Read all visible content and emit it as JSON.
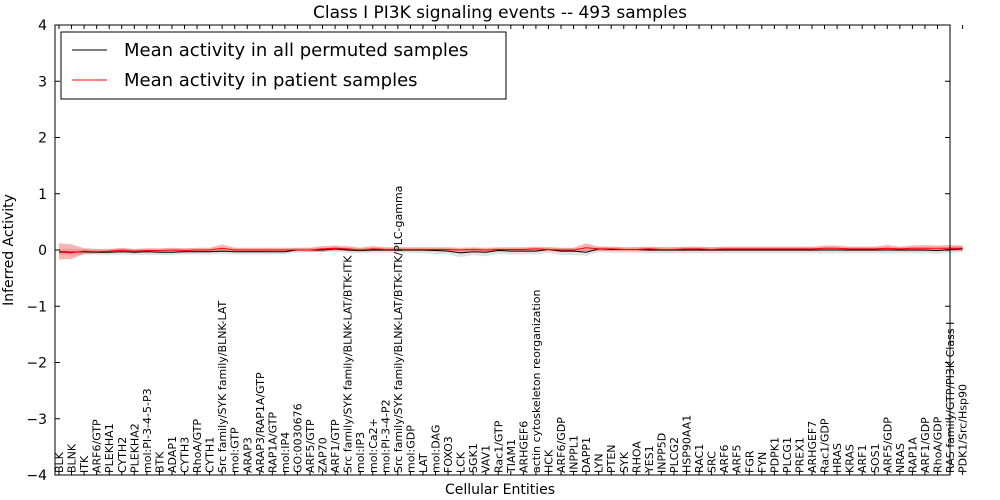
{
  "chart_data": {
    "type": "line",
    "title": "Class I PI3K signaling events -- 493 samples",
    "xlabel": "Cellular Entities",
    "ylabel": "Inferred Activity",
    "ylim": [
      -4,
      4
    ],
    "yticks": [
      -4,
      -3,
      -2,
      -1,
      0,
      1,
      2,
      3,
      4
    ],
    "ytick_labels": [
      "−4",
      "−3",
      "−2",
      "−1",
      "0",
      "1",
      "2",
      "3",
      "4"
    ],
    "grid": false,
    "legend": {
      "position": "top-left",
      "entries": [
        {
          "label": "Mean activity in all permuted samples",
          "color": "#000000"
        },
        {
          "label": "Mean activity in patient samples",
          "color": "#ff0000"
        }
      ]
    },
    "categories": [
      "BLK",
      "BLNK",
      "ITK",
      "ARF6/GTP",
      "PLEKHA1",
      "CYTH2",
      "PLEKHA2",
      "mol:PI-3-4-5-P3",
      "BTK",
      "ADAP1",
      "CYTH3",
      "RhoA/GTP",
      "CYTH1",
      "Src family/SYK family/BLNK-LAT",
      "mol:GTP",
      "ARAP3",
      "ARAP3/RAP1A/GTP",
      "RAP1A/GTP",
      "mol:IP4",
      "GO:0030676",
      "ARF5/GTP",
      "ZAP70",
      "ARF1/GTP",
      "Src family/SYK family/BLNK-LAT/BTK-ITK",
      "mol:IP3",
      "mol:Ca2+",
      "mol:PI-3-4-P2",
      "Src family/SYK family/BLNK-LAT/BTK-ITK/PLC-gamma",
      "mol:GDP",
      "LAT",
      "mol:DAG",
      "FOXO3",
      "LCK",
      "SGK1",
      "VAV1",
      "Rac1/GTP",
      "TIAM1",
      "ARHGEF6",
      "actin cytoskeleton reorganization",
      "HCK",
      "ARF6/GDP",
      "INPPL1",
      "DAPP1",
      "LYN",
      "PTEN",
      "SYK",
      "RHOA",
      "YES1",
      "INPP5D",
      "PLCG2",
      "HSP90AA1",
      "RAC1",
      "SRC",
      "ARF6",
      "ARF5",
      "FGR",
      "FYN",
      "PDPK1",
      "PLCG1",
      "PREX1",
      "ARHGEF7",
      "Rac1/GDP",
      "HRAS",
      "KRAS",
      "ARF1",
      "SOS1",
      "ARF5/GDP",
      "NRAS",
      "RAP1A",
      "ARF1/GDP",
      "RhoA/GDP",
      "RAS family/GTP/PI3K Class I",
      "PDK1/Src/Hsp90"
    ],
    "series": [
      {
        "name": "Mean activity in all permuted samples",
        "values": [
          -0.03,
          -0.04,
          -0.03,
          -0.04,
          -0.04,
          -0.03,
          -0.04,
          -0.03,
          -0.04,
          -0.04,
          -0.03,
          -0.03,
          -0.03,
          -0.02,
          -0.03,
          -0.03,
          -0.03,
          -0.03,
          -0.03,
          0.0,
          0.0,
          0.0,
          0.02,
          0.0,
          -0.01,
          0.0,
          0.0,
          0.0,
          0.0,
          0.0,
          -0.01,
          -0.02,
          -0.05,
          -0.03,
          -0.04,
          -0.01,
          -0.02,
          -0.02,
          -0.02,
          0.01,
          -0.02,
          -0.02,
          -0.04,
          0.02,
          0.01,
          0.01,
          0.01,
          0.0,
          0.0,
          0.0,
          0.0,
          0.0,
          0.0,
          0.0,
          0.0,
          0.0,
          0.0,
          0.0,
          0.0,
          0.0,
          0.0,
          0.0,
          0.0,
          0.0,
          0.0,
          0.0,
          0.0,
          0.0,
          0.0,
          0.0,
          -0.01,
          0.01,
          0.02
        ]
      },
      {
        "name": "Mean activity in patient samples",
        "values": [
          -0.04,
          -0.05,
          -0.02,
          -0.03,
          -0.02,
          0.0,
          -0.02,
          -0.01,
          -0.01,
          0.0,
          -0.01,
          0.0,
          0.0,
          0.03,
          0.0,
          0.0,
          0.0,
          0.0,
          0.0,
          0.0,
          0.0,
          0.02,
          0.03,
          0.02,
          0.0,
          0.02,
          0.01,
          0.01,
          0.01,
          0.01,
          0.01,
          0.01,
          0.0,
          0.01,
          0.0,
          0.01,
          0.01,
          0.01,
          0.02,
          0.01,
          0.0,
          0.0,
          0.04,
          0.02,
          0.02,
          0.01,
          0.01,
          0.02,
          0.01,
          0.01,
          0.02,
          0.02,
          0.01,
          0.02,
          0.02,
          0.02,
          0.02,
          0.02,
          0.02,
          0.02,
          0.02,
          0.03,
          0.03,
          0.02,
          0.02,
          0.02,
          0.03,
          0.02,
          0.03,
          0.03,
          0.03,
          0.03,
          0.03
        ]
      }
    ],
    "bands": [
      {
        "name": "permuted spread",
        "color": "#888888",
        "lower": [
          -0.08,
          -0.1,
          -0.08,
          -0.08,
          -0.09,
          -0.08,
          -0.09,
          -0.09,
          -0.09,
          -0.09,
          -0.08,
          -0.08,
          -0.08,
          -0.07,
          -0.08,
          -0.08,
          -0.08,
          -0.08,
          -0.07,
          -0.05,
          -0.04,
          -0.04,
          -0.03,
          -0.05,
          -0.06,
          -0.05,
          -0.05,
          -0.05,
          -0.05,
          -0.06,
          -0.07,
          -0.08,
          -0.13,
          -0.09,
          -0.11,
          -0.07,
          -0.08,
          -0.08,
          -0.08,
          -0.05,
          -0.09,
          -0.09,
          -0.1,
          -0.04,
          -0.05,
          -0.05,
          -0.05,
          -0.06,
          -0.06,
          -0.06,
          -0.06,
          -0.06,
          -0.06,
          -0.06,
          -0.06,
          -0.06,
          -0.06,
          -0.06,
          -0.06,
          -0.06,
          -0.06,
          -0.06,
          -0.06,
          -0.06,
          -0.06,
          -0.06,
          -0.06,
          -0.06,
          -0.06,
          -0.06,
          -0.07,
          -0.05,
          -0.04
        ],
        "upper": [
          0.02,
          0.02,
          0.02,
          0.01,
          0.01,
          0.02,
          0.01,
          0.02,
          0.01,
          0.01,
          0.02,
          0.02,
          0.02,
          0.03,
          0.02,
          0.02,
          0.02,
          0.02,
          0.02,
          0.04,
          0.04,
          0.04,
          0.06,
          0.04,
          0.04,
          0.04,
          0.04,
          0.04,
          0.04,
          0.04,
          0.04,
          0.03,
          0.02,
          0.03,
          0.02,
          0.04,
          0.03,
          0.03,
          0.03,
          0.05,
          0.04,
          0.03,
          0.02,
          0.06,
          0.05,
          0.05,
          0.05,
          0.05,
          0.05,
          0.05,
          0.05,
          0.05,
          0.05,
          0.05,
          0.05,
          0.05,
          0.05,
          0.05,
          0.05,
          0.05,
          0.05,
          0.05,
          0.05,
          0.05,
          0.05,
          0.05,
          0.05,
          0.05,
          0.05,
          0.05,
          0.04,
          0.06,
          0.07
        ]
      },
      {
        "name": "patient spread",
        "color": "#ff0000",
        "lower": [
          -0.17,
          -0.16,
          -0.07,
          -0.06,
          -0.05,
          -0.03,
          -0.05,
          -0.04,
          -0.04,
          -0.03,
          -0.04,
          -0.03,
          -0.03,
          -0.03,
          -0.02,
          -0.03,
          -0.03,
          -0.02,
          -0.02,
          -0.02,
          -0.03,
          -0.03,
          -0.01,
          -0.02,
          -0.03,
          -0.02,
          -0.02,
          -0.02,
          -0.02,
          -0.02,
          -0.02,
          -0.02,
          -0.03,
          -0.02,
          -0.03,
          -0.02,
          -0.02,
          -0.02,
          -0.02,
          -0.02,
          -0.03,
          -0.03,
          -0.02,
          -0.02,
          -0.02,
          -0.02,
          -0.02,
          -0.02,
          -0.02,
          -0.02,
          -0.02,
          -0.02,
          -0.02,
          -0.02,
          -0.02,
          -0.02,
          -0.02,
          -0.02,
          -0.02,
          -0.02,
          -0.02,
          -0.01,
          -0.01,
          -0.02,
          -0.02,
          -0.02,
          -0.01,
          -0.02,
          -0.02,
          -0.02,
          -0.02,
          -0.02,
          -0.02
        ],
        "upper": [
          0.12,
          0.1,
          0.03,
          0.02,
          0.02,
          0.04,
          0.02,
          0.03,
          0.03,
          0.04,
          0.03,
          0.04,
          0.04,
          0.1,
          0.04,
          0.04,
          0.04,
          0.04,
          0.04,
          0.04,
          0.04,
          0.07,
          0.08,
          0.07,
          0.04,
          0.07,
          0.05,
          0.05,
          0.05,
          0.05,
          0.05,
          0.05,
          0.04,
          0.05,
          0.04,
          0.05,
          0.05,
          0.05,
          0.06,
          0.05,
          0.04,
          0.04,
          0.12,
          0.06,
          0.06,
          0.05,
          0.05,
          0.06,
          0.05,
          0.05,
          0.06,
          0.06,
          0.05,
          0.06,
          0.06,
          0.06,
          0.06,
          0.06,
          0.06,
          0.06,
          0.06,
          0.08,
          0.08,
          0.06,
          0.06,
          0.06,
          0.09,
          0.06,
          0.08,
          0.09,
          0.08,
          0.09,
          0.08
        ]
      }
    ]
  }
}
